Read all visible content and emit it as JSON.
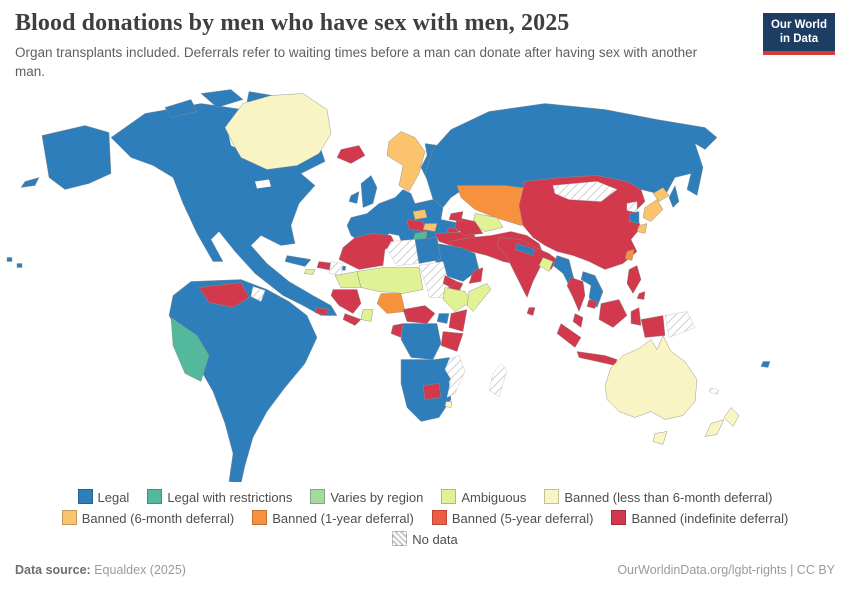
{
  "header": {
    "title": "Blood donations by men who have sex with men, 2025",
    "subtitle": "Organ transplants included. Deferrals refer to waiting times before a man can donate after having sex with another man.",
    "logo": {
      "line1": "Our World",
      "line2": "in Data"
    }
  },
  "palette": {
    "legal": "#2e7ebb",
    "legal_restrictions": "#54b99c",
    "varies": "#a6d9a0",
    "ambiguous": "#e0f293",
    "banned_lt6mo": "#f8f4c4",
    "banned_6mo": "#fcc36d",
    "banned_1yr": "#f8913e",
    "banned_5yr": "#ee5c42",
    "banned_indef": "#d2394c",
    "logo_bg": "#1d3d63",
    "logo_bar": "#d93a34"
  },
  "legend": {
    "rows": [
      [
        {
          "key": "legal",
          "label": "Legal"
        },
        {
          "key": "legal_restrictions",
          "label": "Legal with restrictions"
        },
        {
          "key": "varies",
          "label": "Varies by region"
        },
        {
          "key": "ambiguous",
          "label": "Ambiguous"
        },
        {
          "key": "banned_lt6mo",
          "label": "Banned (less than 6-month deferral)"
        }
      ],
      [
        {
          "key": "banned_6mo",
          "label": "Banned (6-month deferral)"
        },
        {
          "key": "banned_1yr",
          "label": "Banned (1-year deferral)"
        },
        {
          "key": "banned_5yr",
          "label": "Banned (5-year deferral)"
        },
        {
          "key": "banned_indef",
          "label": "Banned (indefinite deferral)"
        }
      ],
      [
        {
          "key": "no_data",
          "label": "No data"
        }
      ]
    ]
  },
  "footer": {
    "source_label": "Data source:",
    "source_value": " Equaldex (2025)",
    "credit": "OurWorldinData.org/lgbt-rights | CC BY"
  },
  "chart_data": {
    "type": "heatmap",
    "subtype": "choropleth_world_map",
    "title": "Blood donations by men who have sex with men, 2025",
    "subtitle": "Organ transplants included. Deferrals refer to waiting times before a man can donate after having sex with another man.",
    "year": 2025,
    "legend_position": "bottom",
    "categories": [
      "Legal",
      "Legal with restrictions",
      "Varies by region",
      "Ambiguous",
      "Banned (less than 6-month deferral)",
      "Banned (6-month deferral)",
      "Banned (1-year deferral)",
      "Banned (5-year deferral)",
      "Banned (indefinite deferral)",
      "No data"
    ],
    "countries_by_status": {
      "Legal": [
        "Canada",
        "United States",
        "Mexico",
        "Cuba",
        "Brazil",
        "Argentina",
        "Colombia",
        "Chile",
        "United Kingdom",
        "Ireland",
        "France",
        "Germany",
        "Spain",
        "Italy",
        "Poland",
        "Ukraine",
        "Finland",
        "Russia",
        "Egypt",
        "Saudi Arabia",
        "South Africa",
        "DR Congo",
        "Angola",
        "Zambia",
        "Uganda",
        "Nepal",
        "Myanmar",
        "Vietnam",
        "Laos",
        "South Korea",
        "Fiji"
      ],
      "Legal with restrictions": [
        "Peru",
        "Greece"
      ],
      "Varies by region": [],
      "Ambiguous": [
        "Mauritania",
        "Mali",
        "Niger",
        "Chad",
        "Ethiopia",
        "Somalia",
        "Ghana",
        "Uzbekistan",
        "Bangladesh",
        "Jamaica"
      ],
      "Banned (less than 6-month deferral)": [
        "Greenland",
        "Australia",
        "New Zealand",
        "Eswatini"
      ],
      "Banned (6-month deferral)": [
        "Norway",
        "Sweden",
        "Hungary",
        "Bulgaria",
        "Japan"
      ],
      "Banned (1-year deferral)": [
        "Kazakhstan",
        "Nigeria",
        "Taiwan"
      ],
      "Banned (5-year deferral)": [],
      "Banned (indefinite deferral)": [
        "China",
        "India",
        "Turkey",
        "Iran",
        "Iraq",
        "Pakistan",
        "Afghanistan",
        "Turkmenistan",
        "Indonesia",
        "Malaysia",
        "Philippines",
        "Thailand",
        "Cambodia",
        "Sri Lanka",
        "Morocco",
        "Algeria",
        "Senegal",
        "Cameroon",
        "Kenya",
        "Tanzania",
        "Botswana",
        "Eritrea",
        "Yemen",
        "Oman",
        "Venezuela",
        "Iceland",
        "Croatia",
        "Serbia",
        "Haiti",
        "Honduras"
      ],
      "No data": [
        "Libya",
        "Sudan",
        "Mongolia",
        "North Korea",
        "Madagascar",
        "Mozambique",
        "Western Sahara",
        "Papua New Guinea",
        "Guyana",
        "New Caledonia"
      ]
    }
  },
  "map": {
    "regions": [
      {
        "id": "alaska",
        "category": "legal"
      },
      {
        "id": "north-america",
        "category": "legal"
      },
      {
        "id": "arctic-islands",
        "category": "legal"
      },
      {
        "id": "greenland",
        "category": "banned_lt6mo"
      },
      {
        "id": "iceland",
        "category": "banned_indef"
      },
      {
        "id": "cuba",
        "category": "legal"
      },
      {
        "id": "jamaica",
        "category": "ambiguous"
      },
      {
        "id": "hispaniola",
        "category": "banned_indef"
      },
      {
        "id": "puerto-rico",
        "category": "legal"
      },
      {
        "id": "honduras",
        "category": "banned_indef"
      },
      {
        "id": "south-america",
        "category": "legal"
      },
      {
        "id": "venezuela",
        "category": "banned_indef"
      },
      {
        "id": "peru",
        "category": "legal_restrictions"
      },
      {
        "id": "guyana",
        "category": "no_data"
      },
      {
        "id": "europe",
        "category": "legal"
      },
      {
        "id": "scandinavia",
        "category": "banned_6mo"
      },
      {
        "id": "finland",
        "category": "legal"
      },
      {
        "id": "british-isles",
        "category": "legal"
      },
      {
        "id": "hungary",
        "category": "banned_6mo"
      },
      {
        "id": "balkans",
        "category": "banned_indef"
      },
      {
        "id": "bulgaria",
        "category": "banned_6mo"
      },
      {
        "id": "greece",
        "category": "legal_restrictions"
      },
      {
        "id": "crimea",
        "category": "banned_indef"
      },
      {
        "id": "turkey",
        "category": "banned_indef"
      },
      {
        "id": "russia",
        "category": "legal"
      },
      {
        "id": "kazakhstan",
        "category": "banned_1yr"
      },
      {
        "id": "uzbekistan",
        "category": "ambiguous"
      },
      {
        "id": "turkmenistan",
        "category": "banned_indef"
      },
      {
        "id": "caucasus",
        "category": "banned_indef"
      },
      {
        "id": "middle-east",
        "category": "banned_indef"
      },
      {
        "id": "saudi-arabia",
        "category": "legal"
      },
      {
        "id": "yemen",
        "category": "banned_indef"
      },
      {
        "id": "oman",
        "category": "banned_indef"
      },
      {
        "id": "india",
        "category": "banned_indef"
      },
      {
        "id": "nepal",
        "category": "legal"
      },
      {
        "id": "bangladesh",
        "category": "ambiguous"
      },
      {
        "id": "sri-lanka",
        "category": "banned_indef"
      },
      {
        "id": "china",
        "category": "banned_indef"
      },
      {
        "id": "mongolia",
        "category": "no_data"
      },
      {
        "id": "north-korea",
        "category": "no_data"
      },
      {
        "id": "south-korea",
        "category": "legal"
      },
      {
        "id": "japan",
        "category": "banned_6mo"
      },
      {
        "id": "taiwan",
        "category": "banned_1yr"
      },
      {
        "id": "myanmar",
        "category": "legal"
      },
      {
        "id": "thailand",
        "category": "banned_indef"
      },
      {
        "id": "vietnam-laos",
        "category": "legal"
      },
      {
        "id": "cambodia",
        "category": "banned_indef"
      },
      {
        "id": "indonesia-malaysia",
        "category": "banned_indef"
      },
      {
        "id": "philippines",
        "category": "banned_indef"
      },
      {
        "id": "papua-new-guinea",
        "category": "no_data"
      },
      {
        "id": "maghreb",
        "category": "banned_indef"
      },
      {
        "id": "western-sahara",
        "category": "no_data"
      },
      {
        "id": "mauritania",
        "category": "ambiguous"
      },
      {
        "id": "sahel",
        "category": "ambiguous"
      },
      {
        "id": "libya",
        "category": "no_data"
      },
      {
        "id": "egypt",
        "category": "legal"
      },
      {
        "id": "sudan",
        "category": "no_data"
      },
      {
        "id": "eritrea",
        "category": "banned_indef"
      },
      {
        "id": "ethiopia",
        "category": "ambiguous"
      },
      {
        "id": "somalia",
        "category": "ambiguous"
      },
      {
        "id": "west-africa-coast",
        "category": "banned_indef"
      },
      {
        "id": "ghana",
        "category": "ambiguous"
      },
      {
        "id": "nigeria",
        "category": "banned_1yr"
      },
      {
        "id": "cameroon-car",
        "category": "banned_indef"
      },
      {
        "id": "uganda",
        "category": "legal"
      },
      {
        "id": "kenya",
        "category": "banned_indef"
      },
      {
        "id": "tanzania",
        "category": "banned_indef"
      },
      {
        "id": "drc",
        "category": "legal"
      },
      {
        "id": "gabon-congo",
        "category": "banned_indef"
      },
      {
        "id": "southern-africa",
        "category": "legal"
      },
      {
        "id": "botswana",
        "category": "banned_indef"
      },
      {
        "id": "mozambique",
        "category": "no_data"
      },
      {
        "id": "madagascar",
        "category": "no_data"
      },
      {
        "id": "eswatini",
        "category": "banned_lt6mo"
      },
      {
        "id": "australia",
        "category": "banned_lt6mo"
      },
      {
        "id": "new-zealand",
        "category": "banned_lt6mo"
      },
      {
        "id": "fiji",
        "category": "legal"
      },
      {
        "id": "new-caledonia",
        "category": "no_data"
      },
      {
        "id": "pacific-islands",
        "category": "legal"
      }
    ]
  }
}
